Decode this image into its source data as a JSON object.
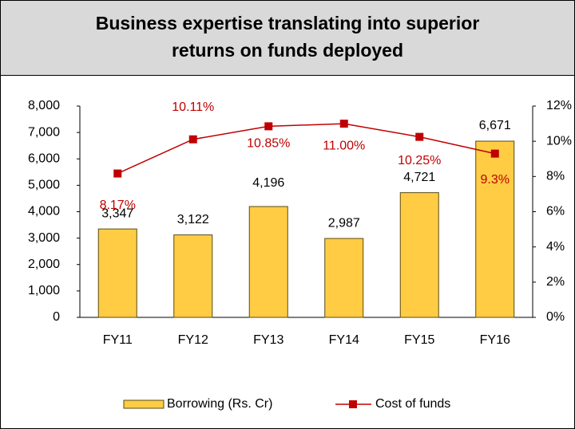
{
  "chart_data": {
    "type": "bar-line",
    "title": "Business expertise translating into superior returns on funds deployed",
    "categories": [
      "FY11",
      "FY12",
      "FY13",
      "FY14",
      "FY15",
      "FY16"
    ],
    "series": [
      {
        "name": "Borrowing (Rs. Cr)",
        "color": "#ffcc44",
        "type": "bar",
        "values": [
          3347,
          3122,
          4196,
          2987,
          4721,
          6671
        ],
        "value_labels": [
          "3,347",
          "3,122",
          "4,196",
          "2,987",
          "4,721",
          "6,671"
        ]
      },
      {
        "name": "Cost of funds",
        "color": "#c00000",
        "type": "line",
        "axis": "y2",
        "values": [
          8.17,
          10.11,
          10.85,
          11.0,
          10.25,
          9.3
        ],
        "value_labels": [
          "8.17%",
          "10.11%",
          "10.85%",
          "11.00%",
          "10.25%",
          "9.3%"
        ]
      }
    ],
    "ylim": [
      0,
      8000
    ],
    "yticks": [
      0,
      {
        "value": 1000,
        "label": "1,000"
      },
      {
        "value": 2000,
        "label": "2,000"
      },
      {
        "value": 3000,
        "label": "3,000"
      },
      {
        "value": 4000,
        "label": "4,000"
      },
      {
        "value": 5000,
        "label": "5,000"
      },
      {
        "value": 6000,
        "label": "6,000"
      },
      {
        "value": 7000,
        "label": "7,000"
      },
      {
        "value": 8000,
        "label": "8,000"
      }
    ],
    "y2lim": [
      0,
      12
    ],
    "y2ticks": [
      {
        "value": 0,
        "label": "0%"
      },
      {
        "value": 2,
        "label": "2%"
      },
      {
        "value": 4,
        "label": "4%"
      },
      {
        "value": 6,
        "label": "6%"
      },
      {
        "value": 8,
        "label": "8%"
      },
      {
        "value": 10,
        "label": "10%"
      },
      {
        "value": 12,
        "label": "12%"
      }
    ],
    "legend": "bottom"
  }
}
